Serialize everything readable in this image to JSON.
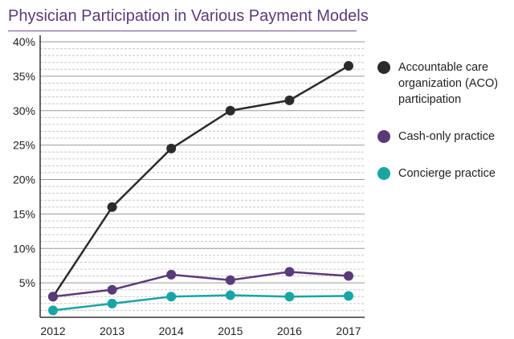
{
  "chart_data": {
    "type": "line",
    "title": "Physician Participation in Various Payment Models",
    "xlabel": "",
    "ylabel": "",
    "x": [
      "2012",
      "2013",
      "2014",
      "2015",
      "2016",
      "2017"
    ],
    "ylim": [
      0,
      40
    ],
    "y_major_ticks": [
      5,
      10,
      15,
      20,
      25,
      30,
      35,
      40
    ],
    "y_tick_labels": [
      "5%",
      "10%",
      "15%",
      "20%",
      "25%",
      "30%",
      "35%",
      "40%"
    ],
    "grid": "horizontal dashed minor and solid major",
    "legend_position": "right",
    "series": [
      {
        "name": "Accountable care organization (ACO) participation",
        "values": [
          3.0,
          16.0,
          24.5,
          30.0,
          31.5,
          36.5
        ],
        "color": "#2b2b2b"
      },
      {
        "name": "Cash-only practice",
        "values": [
          3.0,
          4.0,
          6.2,
          5.4,
          6.6,
          6.0
        ],
        "color": "#5b3a7a"
      },
      {
        "name": "Concierge practice",
        "values": [
          1.0,
          2.0,
          3.0,
          3.2,
          3.0,
          3.1
        ],
        "color": "#1aa5a5"
      }
    ]
  }
}
